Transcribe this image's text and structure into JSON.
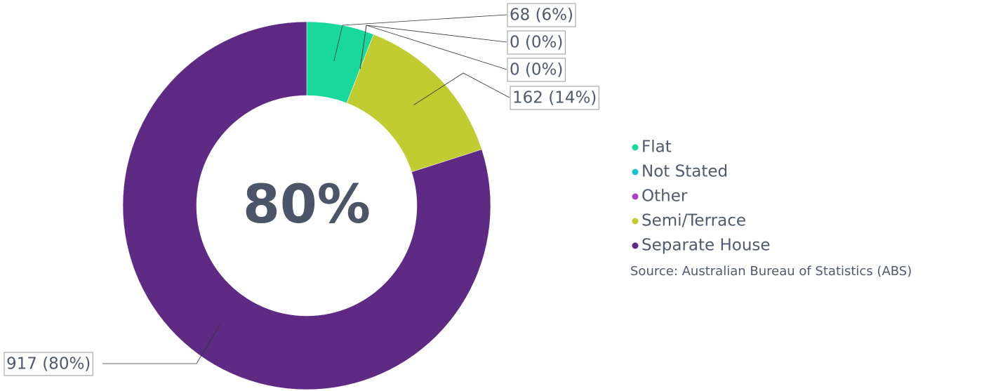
{
  "chart_data": {
    "type": "donut",
    "categories": [
      "Flat",
      "Not Stated",
      "Other",
      "Semi/Terrace",
      "Separate House"
    ],
    "values": [
      68,
      0,
      0,
      162,
      917
    ],
    "value_labels": [
      "68 (6%)",
      "0 (0%)",
      "0 (0%)",
      "162 (14%)",
      "917 (80%)"
    ],
    "colors": [
      "#19d89c",
      "#1ec0d0",
      "#b03fc8",
      "#c0cc30",
      "#5e2a84"
    ],
    "center_label": "80%",
    "legend": "right",
    "source": "Source: Australian Bureau of Statistics (ABS)"
  }
}
